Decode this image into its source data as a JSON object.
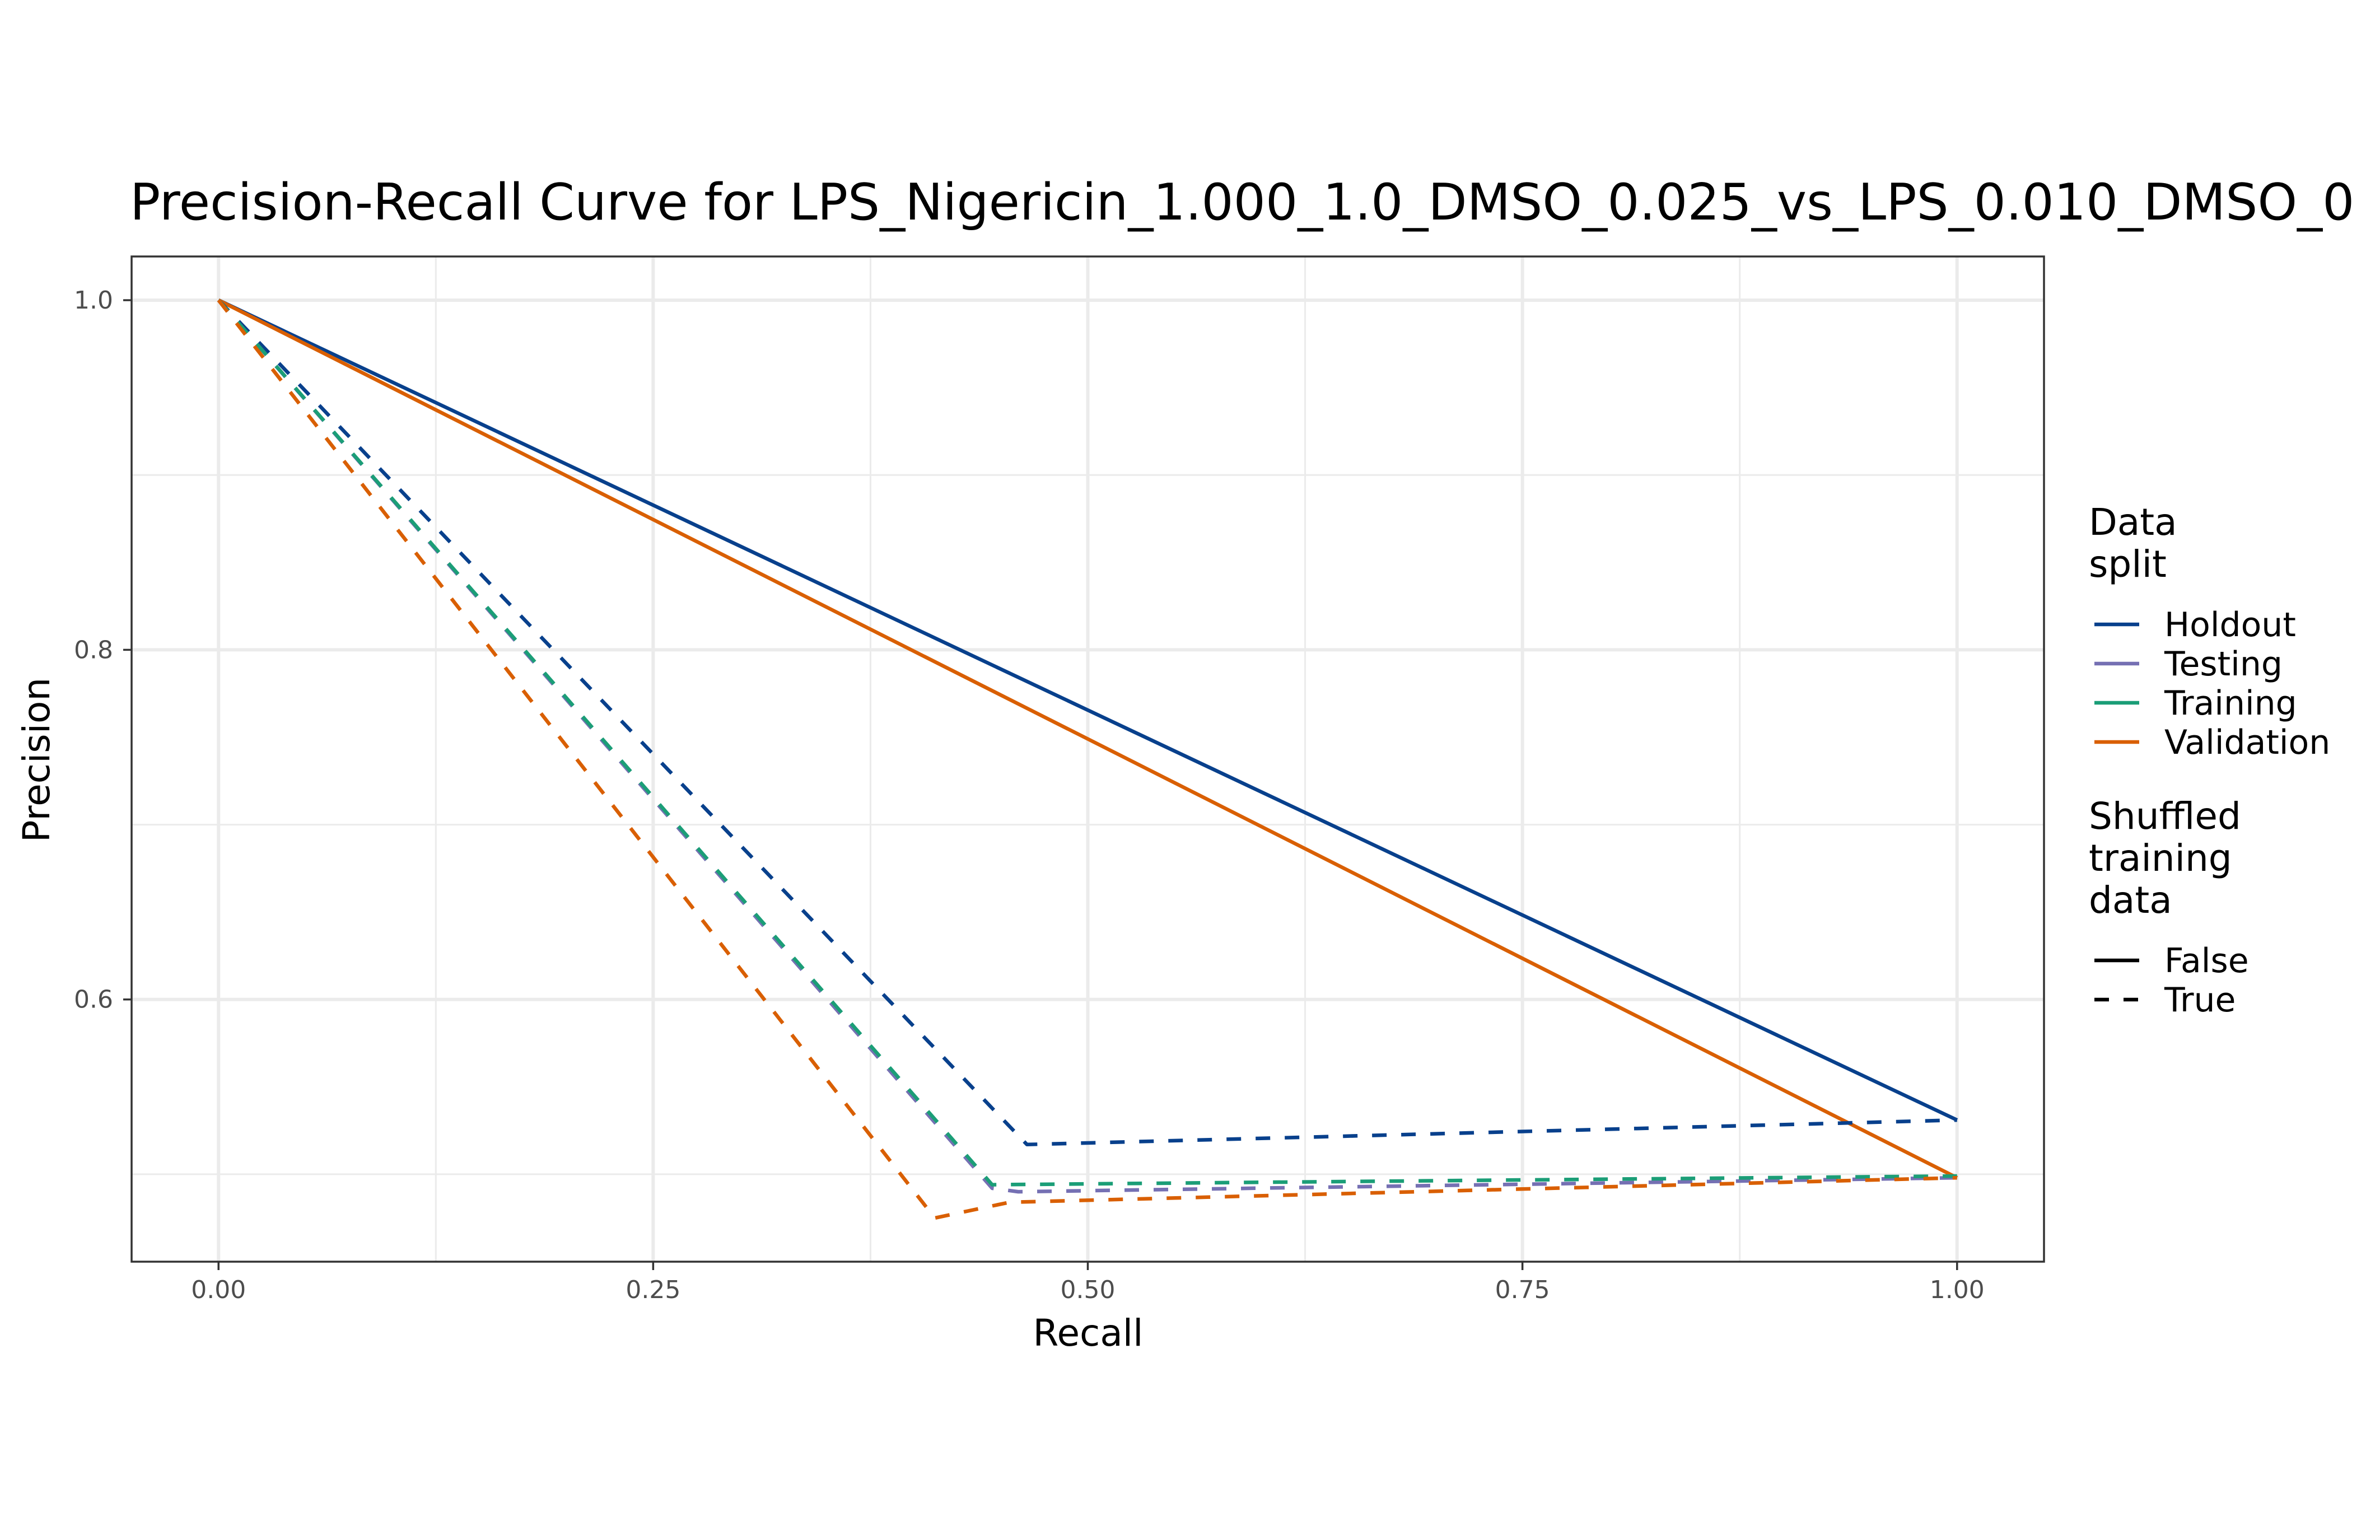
{
  "chart_data": {
    "type": "line",
    "title": "Precision-Recall Curve for LPS_Nigericin_1.000_1.0_DMSO_0.025_vs_LPS_0.010_DMSO_0",
    "xlabel": "Recall",
    "ylabel": "Precision",
    "xlim": [
      -0.05,
      1.05
    ],
    "ylim": [
      0.45,
      1.025
    ],
    "x_ticks": [
      0.0,
      0.25,
      0.5,
      0.75,
      1.0
    ],
    "x_tick_labels": [
      "0.00",
      "0.25",
      "0.50",
      "0.75",
      "1.00"
    ],
    "y_ticks": [
      0.6,
      0.8,
      1.0
    ],
    "y_tick_labels": [
      "0.6",
      "0.8",
      "1.0"
    ],
    "x_minor_ticks": [
      0.125,
      0.375,
      0.625,
      0.875
    ],
    "y_minor_ticks": [
      0.5,
      0.7,
      0.9
    ],
    "grid": true,
    "legend_position": "right",
    "legends": [
      {
        "title": "Data\nsplit",
        "kind": "color",
        "entries": [
          {
            "label": "Holdout",
            "color": "#08408c"
          },
          {
            "label": "Testing",
            "color": "#7570b3"
          },
          {
            "label": "Training",
            "color": "#1b9e77"
          },
          {
            "label": "Validation",
            "color": "#d95f02"
          }
        ]
      },
      {
        "title": "Shuffled\ntraining\ndata",
        "kind": "linetype",
        "entries": [
          {
            "label": "False",
            "linetype": "solid"
          },
          {
            "label": "True",
            "linetype": "dashed"
          }
        ]
      }
    ],
    "series": [
      {
        "split": "Holdout",
        "shuffled": "False",
        "color": "#08408c",
        "linetype": "solid",
        "x": [
          0.0,
          1.0
        ],
        "y": [
          1.0,
          0.531
        ]
      },
      {
        "split": "Validation",
        "shuffled": "False",
        "color": "#d95f02",
        "linetype": "solid",
        "x": [
          0.0,
          1.0
        ],
        "y": [
          1.0,
          0.498
        ]
      },
      {
        "split": "Holdout",
        "shuffled": "True",
        "color": "#08408c",
        "linetype": "dashed",
        "x": [
          0.0,
          0.465,
          1.0
        ],
        "y": [
          1.0,
          0.517,
          0.531
        ]
      },
      {
        "split": "Testing",
        "shuffled": "True",
        "color": "#7570b3",
        "linetype": "dashed",
        "x": [
          0.0,
          0.445,
          0.46,
          1.0
        ],
        "y": [
          1.0,
          0.492,
          0.49,
          0.498
        ]
      },
      {
        "split": "Training",
        "shuffled": "True",
        "color": "#1b9e77",
        "linetype": "dashed",
        "x": [
          0.0,
          0.445,
          1.0
        ],
        "y": [
          1.0,
          0.494,
          0.499
        ]
      },
      {
        "split": "Validation",
        "shuffled": "True",
        "color": "#d95f02",
        "linetype": "dashed",
        "x": [
          0.0,
          0.412,
          0.455,
          1.0
        ],
        "y": [
          1.0,
          0.475,
          0.484,
          0.498
        ]
      }
    ]
  }
}
